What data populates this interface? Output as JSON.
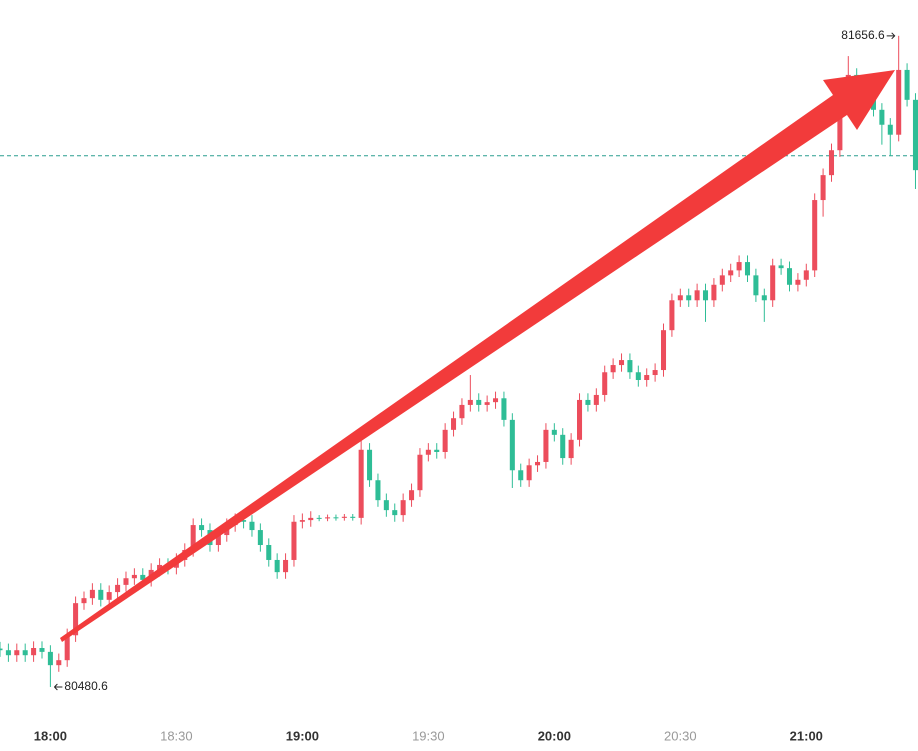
{
  "chart_data": {
    "type": "candlestick",
    "up_color": "#ec4d5c",
    "down_color": "#2ebd96",
    "xlim": [
      1068,
      1286.6
    ],
    "ylim": [
      80430,
      81721.3
    ],
    "xticks": [
      {
        "value": 1080,
        "label": "18:00"
      },
      {
        "value": 1110,
        "label": "18:30"
      },
      {
        "value": 1140,
        "label": "19:00"
      },
      {
        "value": 1170,
        "label": "19:30"
      },
      {
        "value": 1200,
        "label": "20:00"
      },
      {
        "value": 1230,
        "label": "20:30"
      },
      {
        "value": 1260,
        "label": "21:00"
      }
    ],
    "price_line": 81440,
    "price_line_color": "#2a9d8f",
    "x": [
      1068,
      1070,
      1072,
      1074,
      1076,
      1078,
      1080,
      1082,
      1084,
      1086,
      1088,
      1090,
      1092,
      1094,
      1096,
      1098,
      1100,
      1102,
      1104,
      1106,
      1108,
      1110,
      1112,
      1114,
      1116,
      1118,
      1120,
      1122,
      1124,
      1126,
      1128,
      1130,
      1132,
      1134,
      1136,
      1138,
      1140,
      1142,
      1144,
      1146,
      1148,
      1150,
      1152,
      1154,
      1156,
      1158,
      1160,
      1162,
      1164,
      1166,
      1168,
      1170,
      1172,
      1174,
      1176,
      1178,
      1180,
      1182,
      1184,
      1186,
      1188,
      1190,
      1192,
      1194,
      1196,
      1198,
      1200,
      1202,
      1204,
      1206,
      1208,
      1210,
      1212,
      1214,
      1216,
      1218,
      1220,
      1222,
      1224,
      1226,
      1228,
      1230,
      1232,
      1234,
      1236,
      1238,
      1240,
      1242,
      1244,
      1246,
      1248,
      1250,
      1252,
      1254,
      1256,
      1258,
      1260,
      1262,
      1264,
      1266,
      1268,
      1270,
      1272,
      1274,
      1276,
      1278,
      1280,
      1282,
      1284,
      1286
    ],
    "open": [
      80550,
      80547,
      80538,
      80547,
      80538,
      80551,
      80544,
      80520,
      80529,
      80574,
      80632,
      80641,
      80656,
      80638,
      80652,
      80665,
      80677,
      80683,
      80674,
      80692,
      80701,
      80696,
      80710,
      80728,
      80773,
      80764,
      80737,
      80755,
      80773,
      80782,
      80779,
      80764,
      80737,
      80710,
      80688,
      80710,
      80779,
      80782,
      80786,
      80785,
      80787,
      80786,
      80788,
      80786,
      80909,
      80854,
      80818,
      80800,
      80791,
      80818,
      80836,
      80900,
      80909,
      80905,
      80945,
      80966,
      80990,
      80999,
      80990,
      80995,
      81002,
      80963,
      80872,
      80854,
      80881,
      80887,
      80945,
      80936,
      80894,
      80927,
      80999,
      80990,
      81008,
      81049,
      81062,
      81071,
      81049,
      81035,
      81044,
      81053,
      81125,
      81179,
      81188,
      81179,
      81197,
      81179,
      81207,
      81224,
      81233,
      81248,
      81224,
      81188,
      81179,
      81242,
      81237,
      81207,
      81216,
      81233,
      81360,
      81405,
      81450,
      81523,
      81586,
      81550,
      81559,
      81523,
      81496,
      81478,
      81595,
      81541
    ],
    "high": [
      80562,
      80559,
      80559,
      80559,
      80563,
      80563,
      80556,
      80541,
      80586,
      80644,
      80653,
      80668,
      80668,
      80664,
      80677,
      80689,
      80695,
      80695,
      80704,
      80713,
      80713,
      80722,
      80740,
      80785,
      80785,
      80776,
      80767,
      80785,
      80794,
      80794,
      80791,
      80776,
      80749,
      80722,
      80722,
      80791,
      80794,
      80798,
      80791,
      80792,
      80792,
      80793,
      80793,
      80930,
      80921,
      80866,
      80830,
      80812,
      80830,
      80848,
      80912,
      80921,
      80921,
      80957,
      80978,
      81002,
      81044,
      81011,
      81007,
      81014,
      81014,
      80975,
      80884,
      80893,
      80899,
      80957,
      80957,
      80948,
      80939,
      81011,
      81011,
      81020,
      81061,
      81074,
      81083,
      81083,
      81061,
      81056,
      81065,
      81137,
      81191,
      81200,
      81200,
      81209,
      81209,
      81219,
      81236,
      81245,
      81260,
      81260,
      81236,
      81200,
      81254,
      81254,
      81249,
      81228,
      81245,
      81372,
      81417,
      81462,
      81535,
      81620,
      81598,
      81571,
      81571,
      81535,
      81508,
      81656.6,
      81607,
      81553
    ],
    "low": [
      80535,
      80526,
      80526,
      80526,
      80526,
      80532,
      80480.6,
      80508,
      80517,
      80562,
      80620,
      80629,
      80626,
      80626,
      80640,
      80653,
      80665,
      80662,
      80662,
      80680,
      80684,
      80684,
      80698,
      80716,
      80752,
      80725,
      80725,
      80743,
      80761,
      80767,
      80752,
      80725,
      80698,
      80676,
      80676,
      80698,
      80767,
      80770,
      80780,
      80780,
      80781,
      80781,
      80781,
      80774,
      80842,
      80806,
      80788,
      80779,
      80779,
      80806,
      80824,
      80888,
      80893,
      80893,
      80933,
      80954,
      80978,
      80978,
      80978,
      80983,
      80951,
      80840,
      80842,
      80842,
      80869,
      80875,
      80924,
      80882,
      80882,
      80915,
      80978,
      80978,
      80996,
      81037,
      81050,
      81037,
      81023,
      81023,
      81032,
      81041,
      81113,
      81167,
      81167,
      81167,
      81140,
      81167,
      81195,
      81212,
      81221,
      81212,
      81176,
      81140,
      81167,
      81225,
      81195,
      81195,
      81204,
      81221,
      81330,
      81393,
      81438,
      81511,
      81538,
      81520,
      81511,
      81460,
      81440,
      81466,
      81529,
      81380
    ],
    "close": [
      80547,
      80538,
      80547,
      80538,
      80551,
      80544,
      80520,
      80529,
      80574,
      80632,
      80641,
      80656,
      80638,
      80652,
      80665,
      80677,
      80683,
      80674,
      80692,
      80701,
      80696,
      80710,
      80728,
      80773,
      80764,
      80737,
      80755,
      80773,
      80782,
      80779,
      80764,
      80737,
      80710,
      80688,
      80710,
      80779,
      80782,
      80786,
      80785,
      80787,
      80786,
      80788,
      80786,
      80909,
      80854,
      80818,
      80800,
      80791,
      80818,
      80836,
      80900,
      80909,
      80905,
      80945,
      80966,
      80990,
      80999,
      80990,
      80995,
      81002,
      80963,
      80872,
      80854,
      80881,
      80887,
      80945,
      80936,
      80894,
      80927,
      80999,
      80990,
      81008,
      81049,
      81062,
      81071,
      81049,
      81035,
      81044,
      81053,
      81125,
      81179,
      81188,
      81179,
      81197,
      81179,
      81207,
      81224,
      81233,
      81248,
      81224,
      81188,
      81179,
      81242,
      81237,
      81207,
      81216,
      81233,
      81360,
      81405,
      81450,
      81523,
      81586,
      81550,
      81559,
      81523,
      81496,
      81478,
      81595,
      81541,
      81414
    ]
  }
}
